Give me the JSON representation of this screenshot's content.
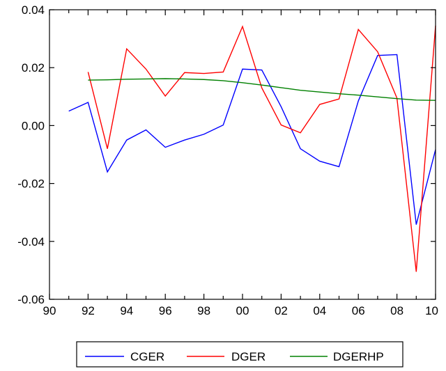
{
  "chart_data": {
    "type": "line",
    "x_tick_labels": [
      "90",
      "92",
      "94",
      "96",
      "98",
      "00",
      "02",
      "04",
      "06",
      "08",
      "10"
    ],
    "x_ticks": [
      1990,
      1992,
      1994,
      1996,
      1998,
      2000,
      2002,
      2004,
      2006,
      2008,
      2010
    ],
    "xlim": [
      1990,
      2010
    ],
    "y_tick_labels": [
      "0.04",
      "0.02",
      "0.00",
      "-0.02",
      "-0.04",
      "-0.06"
    ],
    "y_ticks": [
      0.04,
      0.02,
      0.0,
      -0.02,
      -0.04,
      -0.06
    ],
    "ylim": [
      -0.06,
      0.04
    ],
    "grid": false,
    "legend_position": "bottom",
    "series": [
      {
        "name": "CGER",
        "color": "#0000ff",
        "x": [
          1991,
          1992,
          1993,
          1994,
          1995,
          1996,
          1997,
          1998,
          1999,
          2000,
          2001,
          2002,
          2003,
          2004,
          2005,
          2006,
          2007,
          2008,
          2009,
          2010
        ],
        "values": [
          0.005,
          0.008,
          -0.016,
          -0.005,
          -0.0015,
          -0.0075,
          -0.005,
          -0.003,
          0.0002,
          0.0195,
          0.0192,
          0.0065,
          -0.008,
          -0.0123,
          -0.0142,
          0.0085,
          0.0242,
          0.0245,
          -0.0342,
          -0.0083
        ]
      },
      {
        "name": "DGER",
        "color": "#ff0000",
        "x": [
          1992,
          1993,
          1994,
          1995,
          1996,
          1997,
          1998,
          1999,
          2000,
          2001,
          2002,
          2003,
          2004,
          2005,
          2006,
          2007,
          2008,
          2009,
          2010
        ],
        "values": [
          0.0185,
          -0.008,
          0.0265,
          0.0195,
          0.0102,
          0.0183,
          0.018,
          0.0185,
          0.0342,
          0.013,
          0.0002,
          -0.0025,
          0.0073,
          0.0092,
          0.0332,
          0.0255,
          0.0095,
          -0.0505,
          0.0345
        ]
      },
      {
        "name": "DGERHP",
        "color": "#008000",
        "x": [
          1992,
          1993,
          1994,
          1995,
          1996,
          1997,
          1998,
          1999,
          2000,
          2001,
          2002,
          2003,
          2004,
          2005,
          2006,
          2007,
          2008,
          2009,
          2010
        ],
        "values": [
          0.0157,
          0.0158,
          0.016,
          0.0161,
          0.0162,
          0.0161,
          0.0159,
          0.0155,
          0.0148,
          0.014,
          0.0131,
          0.0122,
          0.0116,
          0.011,
          0.0105,
          0.0099,
          0.0093,
          0.0088,
          0.0087
        ]
      }
    ]
  }
}
